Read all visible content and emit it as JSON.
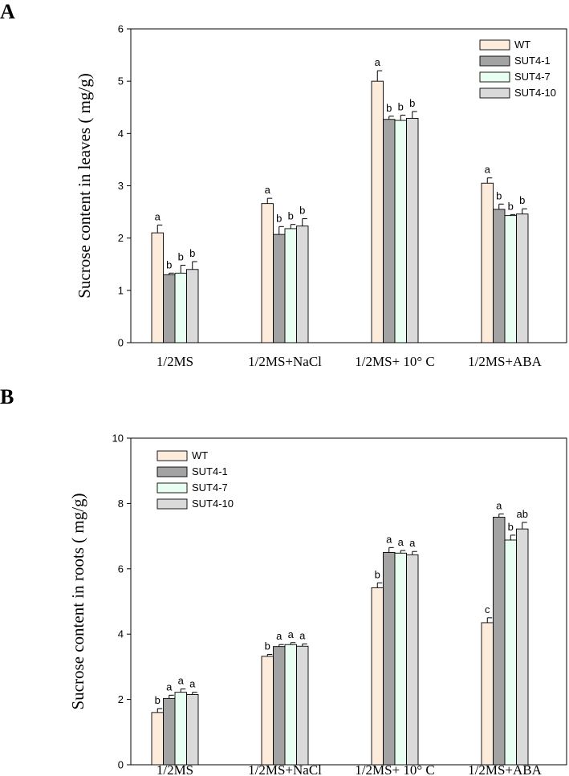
{
  "panels": {
    "a": {
      "letter": "A"
    },
    "b": {
      "letter": "B"
    }
  },
  "series_colors": {
    "WT": "#fdebdc",
    "SUT4-1": "#a3a3a3",
    "SUT4-7": "#e9fff1",
    "SUT4-10": "#dadada"
  },
  "chart_data": [
    {
      "type": "bar",
      "panel": "A",
      "ylabel": "Sucrose content in leaves ( mg/g)",
      "xlabel": "",
      "ylim": [
        0,
        6
      ],
      "yticks": [
        "0",
        "1",
        "2",
        "3",
        "4",
        "5",
        "6"
      ],
      "categories": [
        "1/2MS",
        "1/2MS+NaCl",
        "1/2MS+ 10° C",
        "1/2MS+ABA"
      ],
      "legend_position": "top-right",
      "series": [
        {
          "name": "WT",
          "values": [
            2.1,
            2.66,
            5.0,
            3.05
          ],
          "errors": [
            0.15,
            0.1,
            0.2,
            0.1
          ],
          "labels": [
            "a",
            "a",
            "a",
            "a"
          ]
        },
        {
          "name": "SUT4-1",
          "values": [
            1.3,
            2.07,
            4.27,
            2.55
          ],
          "errors": [
            0.03,
            0.15,
            0.06,
            0.1
          ],
          "labels": [
            "b",
            "b",
            "b",
            "b"
          ]
        },
        {
          "name": "SUT4-7",
          "values": [
            1.33,
            2.18,
            4.25,
            2.43
          ],
          "errors": [
            0.15,
            0.08,
            0.1,
            0.02
          ],
          "labels": [
            "b",
            "b",
            "b",
            "b"
          ]
        },
        {
          "name": "SUT4-10",
          "values": [
            1.4,
            2.23,
            4.29,
            2.46
          ],
          "errors": [
            0.15,
            0.14,
            0.13,
            0.1
          ],
          "labels": [
            "b",
            "b",
            "b",
            "b"
          ]
        }
      ]
    },
    {
      "type": "bar",
      "panel": "B",
      "ylabel": "Sucrose content in roots ( mg/g)",
      "xlabel": "",
      "ylim": [
        0,
        10
      ],
      "yticks": [
        "0",
        "2",
        "4",
        "6",
        "8",
        "10"
      ],
      "categories": [
        "1/2MS",
        "1/2MS+NaCl",
        "1/2MS+ 10° C",
        "1/2MS+ABA"
      ],
      "legend_position": "top-left",
      "series": [
        {
          "name": "WT",
          "values": [
            1.6,
            3.32,
            5.42,
            4.35
          ],
          "errors": [
            0.12,
            0.06,
            0.15,
            0.15
          ],
          "labels": [
            "b",
            "b",
            "b",
            "c"
          ]
        },
        {
          "name": "SUT4-1",
          "values": [
            2.03,
            3.62,
            6.5,
            7.58
          ],
          "errors": [
            0.1,
            0.06,
            0.15,
            0.1
          ],
          "labels": [
            "a",
            "a",
            "a",
            "a"
          ]
        },
        {
          "name": "SUT4-7",
          "values": [
            2.22,
            3.68,
            6.48,
            6.88
          ],
          "errors": [
            0.1,
            0.06,
            0.08,
            0.15
          ],
          "labels": [
            "a",
            "a",
            "a",
            "b"
          ]
        },
        {
          "name": "SUT4-10",
          "values": [
            2.15,
            3.63,
            6.43,
            7.22
          ],
          "errors": [
            0.07,
            0.07,
            0.1,
            0.2
          ],
          "labels": [
            "a",
            "a",
            "a",
            "ab"
          ]
        }
      ]
    }
  ]
}
